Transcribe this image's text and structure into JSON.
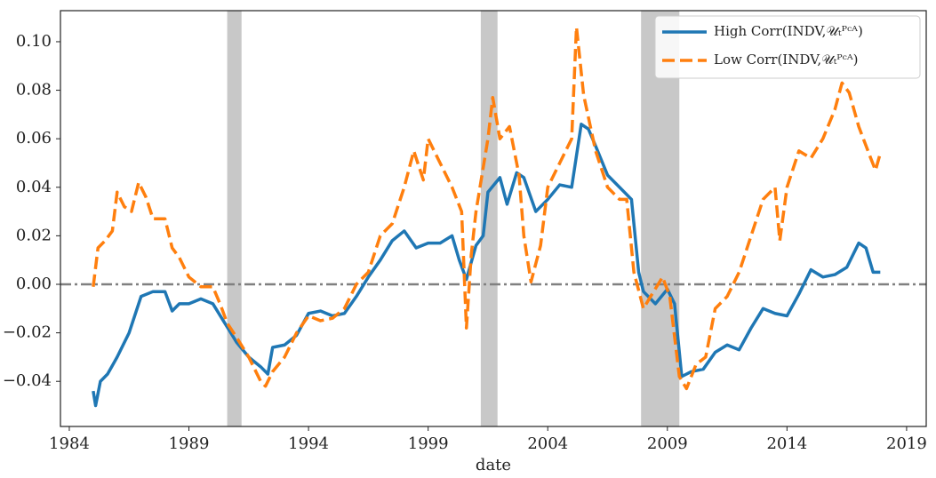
{
  "chart_data": {
    "type": "line",
    "xlabel": "date",
    "xlim": [
      1983.63,
      2019.82
    ],
    "ylim": [
      -0.0586,
      0.1128
    ],
    "xticks": [
      1984,
      1989,
      1994,
      1999,
      2004,
      2009,
      2014,
      2019
    ],
    "yticks": [
      {
        "value": -0.04,
        "label": "−0.04"
      },
      {
        "value": -0.02,
        "label": "−0.02"
      },
      {
        "value": 0,
        "label": "0.00"
      },
      {
        "value": 0.02,
        "label": "0.02"
      },
      {
        "value": 0.04,
        "label": "0.04"
      },
      {
        "value": 0.06,
        "label": "0.06"
      },
      {
        "value": 0.08,
        "label": "0.08"
      },
      {
        "value": 0.1,
        "label": "0.10"
      }
    ],
    "grid": false,
    "legend": "upper right",
    "hline": 0,
    "hline_color": "#808080",
    "shade_color": "#c8c8c8",
    "shaded_periods": [
      [
        1990.6,
        1991.2
      ],
      [
        2001.2,
        2001.9
      ],
      [
        2007.9,
        2009.5
      ]
    ],
    "series": [
      {
        "name": "High Corr(INDV,𝒰ₜᴾᶜᴬ)",
        "color": "#1f77b4",
        "style": "solid",
        "x": [
          1985.0,
          1985.1,
          1985.3,
          1985.6,
          1986.0,
          1986.5,
          1987.0,
          1987.5,
          1988.0,
          1988.3,
          1988.6,
          1989.0,
          1989.5,
          1990.0,
          1990.5,
          1991.0,
          1991.5,
          1992.0,
          1992.3,
          1992.5,
          1993.0,
          1993.5,
          1994.0,
          1994.5,
          1995.0,
          1995.5,
          1996.0,
          1996.5,
          1997.0,
          1997.5,
          1998.0,
          1998.5,
          1999.0,
          1999.5,
          2000.0,
          2000.3,
          2000.6,
          2001.0,
          2001.3,
          2001.5,
          2002.0,
          2002.3,
          2002.7,
          2003.0,
          2003.5,
          2004.0,
          2004.5,
          2005.0,
          2005.4,
          2005.7,
          2006.0,
          2006.5,
          2007.0,
          2007.5,
          2007.8,
          2008.0,
          2008.5,
          2009.0,
          2009.3,
          2009.6,
          2010.0,
          2010.5,
          2011.0,
          2011.5,
          2012.0,
          2012.5,
          2013.0,
          2013.5,
          2014.0,
          2014.5,
          2015.0,
          2015.5,
          2016.0,
          2016.5,
          2017.0,
          2017.3,
          2017.6,
          2017.9
        ],
        "values": [
          -0.044,
          -0.05,
          -0.04,
          -0.037,
          -0.03,
          -0.02,
          -0.005,
          -0.003,
          -0.003,
          -0.011,
          -0.008,
          -0.008,
          -0.006,
          -0.008,
          -0.016,
          -0.024,
          -0.03,
          -0.034,
          -0.037,
          -0.026,
          -0.025,
          -0.021,
          -0.012,
          -0.011,
          -0.013,
          -0.012,
          -0.005,
          0.003,
          0.01,
          0.018,
          0.022,
          0.015,
          0.017,
          0.017,
          0.02,
          0.01,
          0.002,
          0.016,
          0.02,
          0.038,
          0.044,
          0.033,
          0.046,
          0.044,
          0.03,
          0.035,
          0.041,
          0.04,
          0.066,
          0.064,
          0.057,
          0.045,
          0.04,
          0.035,
          0.005,
          -0.003,
          -0.008,
          -0.002,
          -0.008,
          -0.038,
          -0.036,
          -0.035,
          -0.028,
          -0.025,
          -0.027,
          -0.018,
          -0.01,
          -0.012,
          -0.013,
          -0.004,
          0.006,
          0.003,
          0.004,
          0.007,
          0.017,
          0.015,
          0.005,
          0.005
        ]
      },
      {
        "name": "Low Corr(INDV,𝒰ₜᴾᶜᴬ)",
        "color": "#ff7f0e",
        "style": "dashed",
        "x": [
          1985.0,
          1985.2,
          1985.5,
          1985.8,
          1986.0,
          1986.3,
          1986.6,
          1986.9,
          1987.2,
          1987.5,
          1988.0,
          1988.3,
          1988.6,
          1989.0,
          1989.5,
          1990.0,
          1990.3,
          1990.6,
          1991.0,
          1991.5,
          1992.0,
          1992.2,
          1992.5,
          1993.0,
          1993.5,
          1994.0,
          1994.5,
          1995.0,
          1995.5,
          1996.0,
          1996.5,
          1997.0,
          1997.5,
          1998.0,
          1998.4,
          1998.8,
          1999.0,
          1999.5,
          2000.0,
          2000.4,
          2000.6,
          2000.8,
          2001.0,
          2001.5,
          2001.7,
          2002.0,
          2002.4,
          2002.8,
          2003.0,
          2003.3,
          2003.7,
          2004.0,
          2004.5,
          2005.0,
          2005.2,
          2005.5,
          2006.0,
          2006.5,
          2007.0,
          2007.3,
          2007.6,
          2008.0,
          2008.3,
          2008.8,
          2009.1,
          2009.5,
          2009.8,
          2010.2,
          2010.6,
          2011.0,
          2011.5,
          2012.0,
          2012.5,
          2013.0,
          2013.5,
          2013.7,
          2014.0,
          2014.5,
          2015.0,
          2015.5,
          2016.0,
          2016.3,
          2016.6,
          2017.0,
          2017.5,
          2017.7,
          2017.9
        ],
        "values": [
          -0.001,
          0.015,
          0.018,
          0.022,
          0.038,
          0.032,
          0.03,
          0.042,
          0.036,
          0.027,
          0.027,
          0.015,
          0.011,
          0.003,
          -0.001,
          -0.001,
          -0.008,
          -0.016,
          -0.022,
          -0.03,
          -0.04,
          -0.042,
          -0.036,
          -0.03,
          -0.02,
          -0.013,
          -0.015,
          -0.014,
          -0.01,
          0.0,
          0.005,
          0.02,
          0.025,
          0.04,
          0.055,
          0.043,
          0.06,
          0.05,
          0.04,
          0.03,
          -0.018,
          0.012,
          0.03,
          0.06,
          0.077,
          0.06,
          0.065,
          0.045,
          0.02,
          0.001,
          0.016,
          0.04,
          0.05,
          0.06,
          0.106,
          0.078,
          0.055,
          0.04,
          0.035,
          0.035,
          0.005,
          -0.01,
          -0.005,
          0.003,
          -0.005,
          -0.038,
          -0.043,
          -0.033,
          -0.03,
          -0.01,
          -0.005,
          0.005,
          0.02,
          0.035,
          0.04,
          0.018,
          0.04,
          0.055,
          0.052,
          0.06,
          0.072,
          0.083,
          0.079,
          0.065,
          0.052,
          0.047,
          0.054
        ]
      }
    ]
  }
}
